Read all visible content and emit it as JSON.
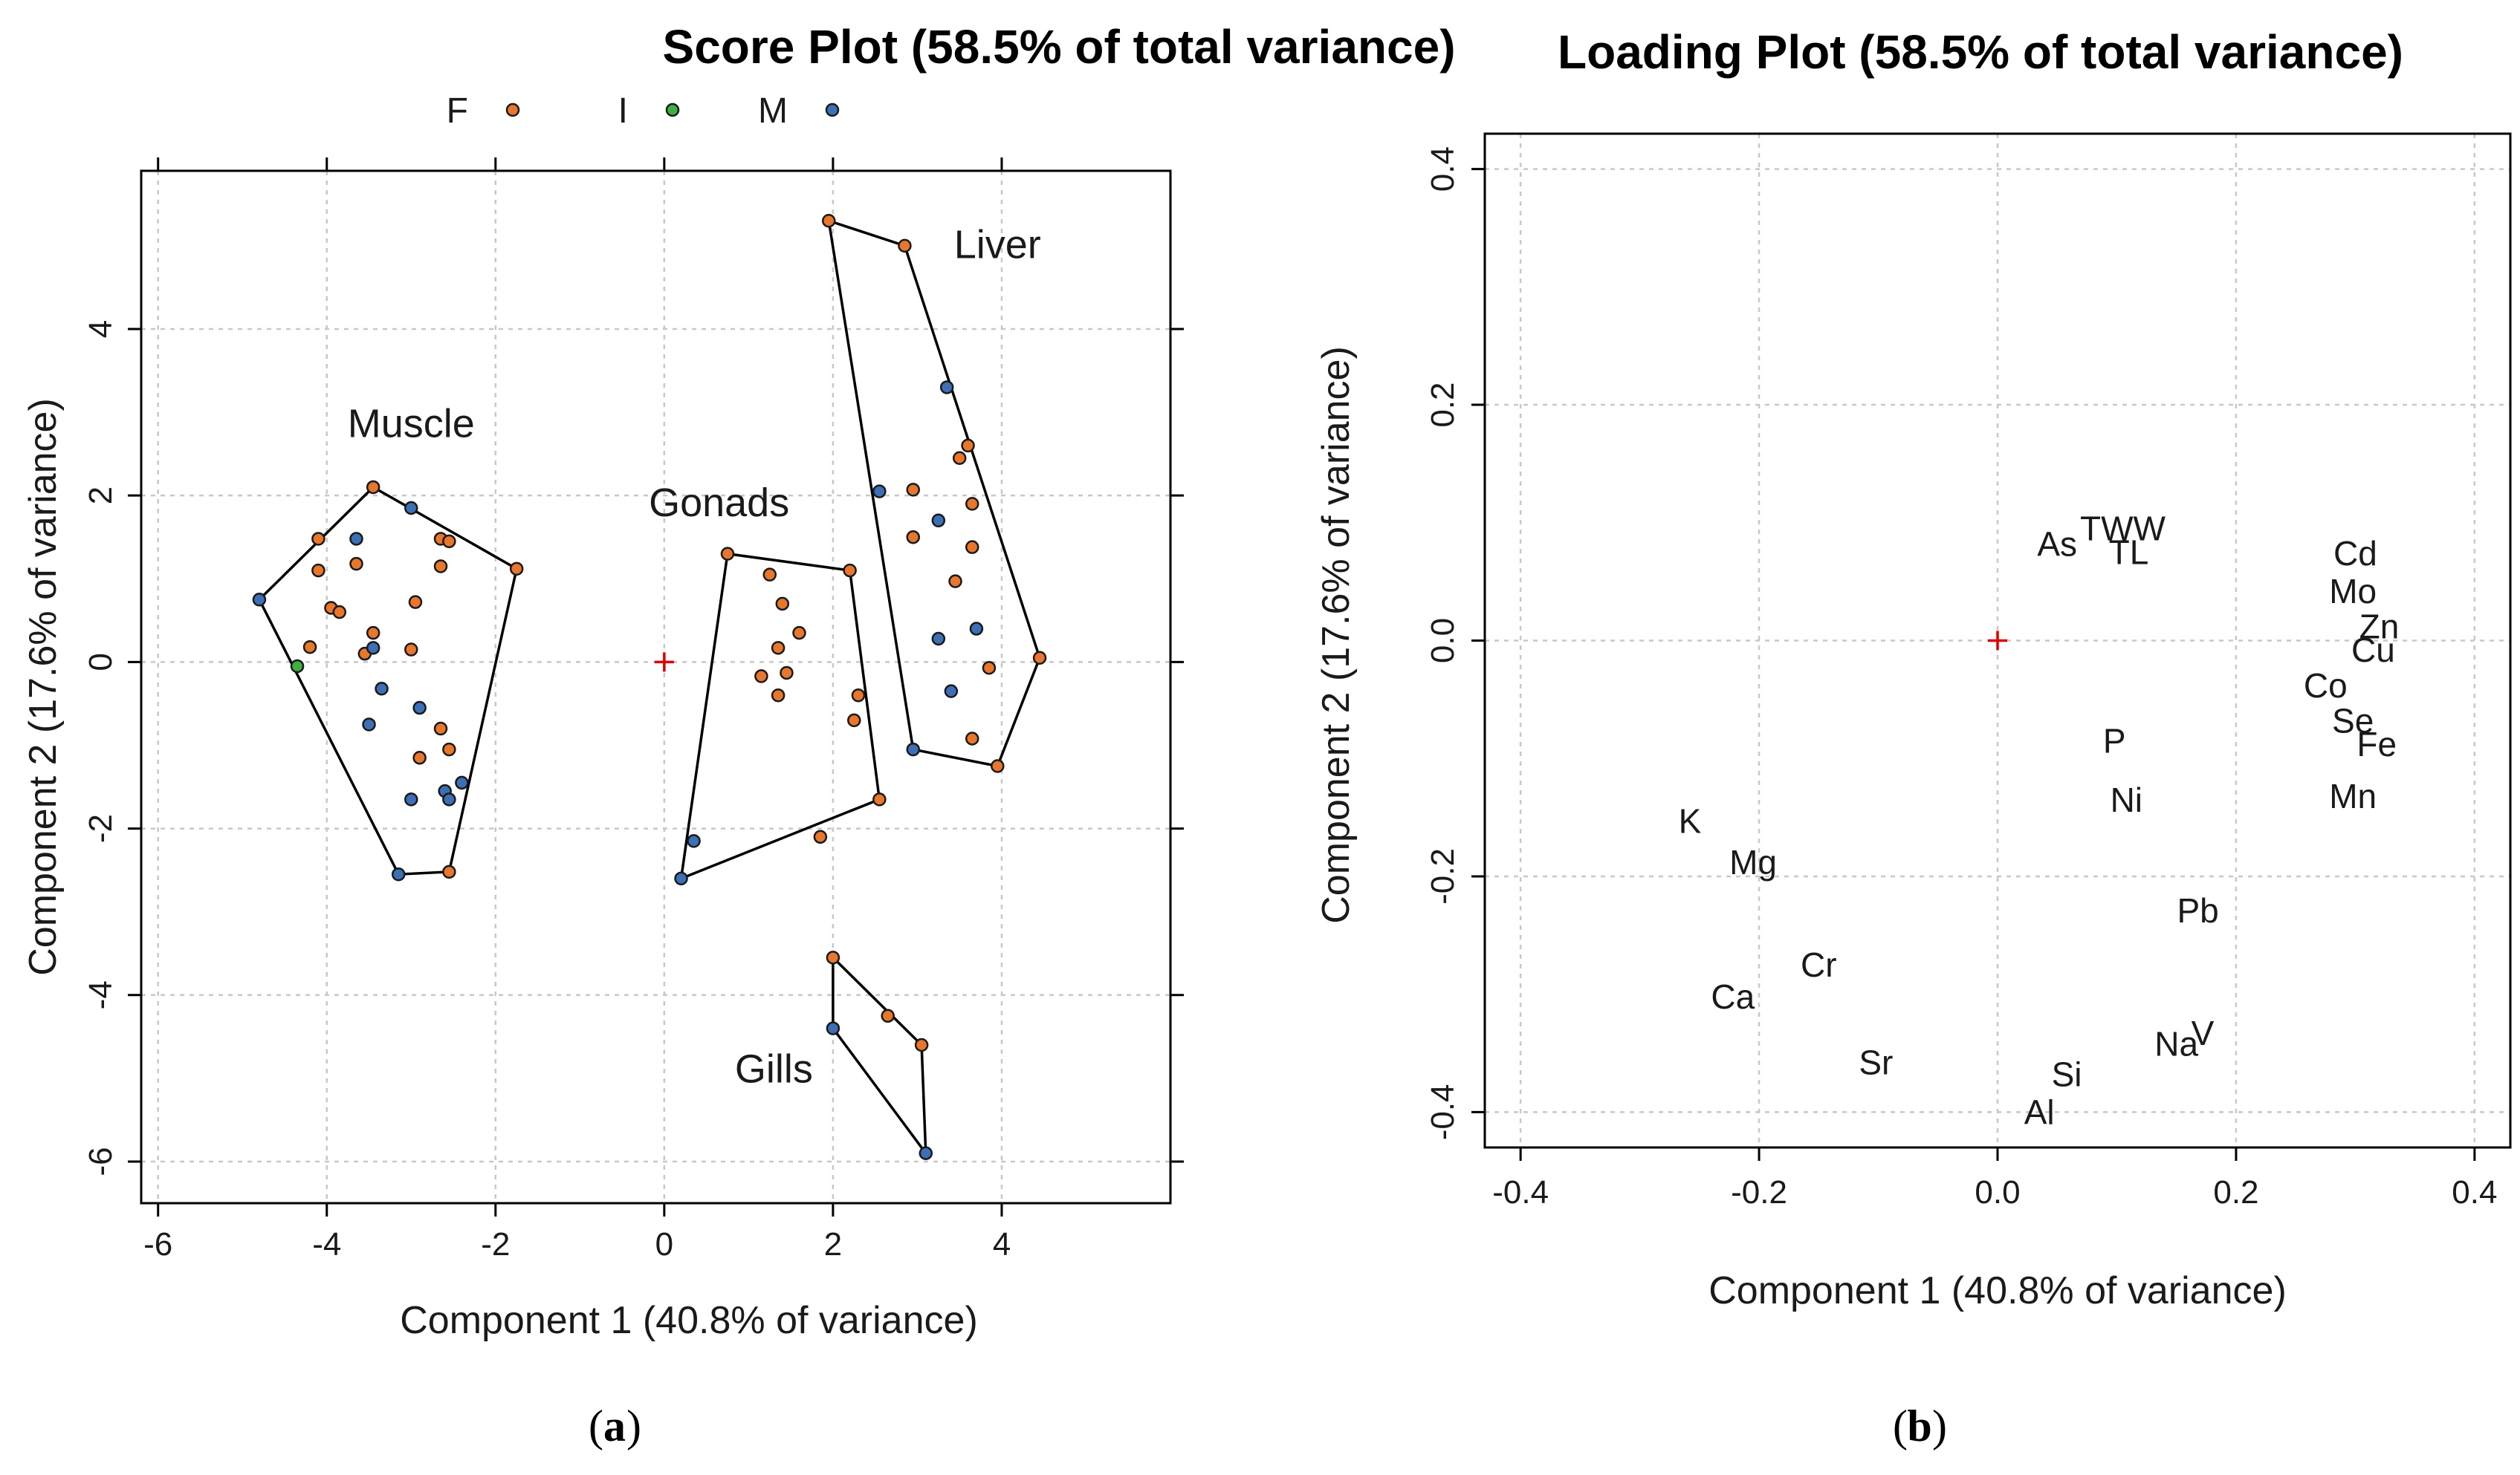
{
  "chart_data": [
    {
      "id": "a",
      "type": "scatter",
      "title": "Score Plot (58.5% of total variance)",
      "xlabel": "Component 1 (40.8% of variance)",
      "ylabel": "Component 2 (17.6% of variance)",
      "xlim": [
        -6.2,
        6.0
      ],
      "ylim": [
        -6.5,
        5.9
      ],
      "xticks": [
        -6,
        -4,
        -2,
        0,
        2,
        4
      ],
      "yticks": [
        -6,
        -4,
        -2,
        0,
        2,
        4
      ],
      "grid": true,
      "panel_label": "a",
      "colors": {
        "F": "#e8762b",
        "I": "#3cb043",
        "M": "#3b6fb6",
        "origin": "#e00000"
      },
      "legend": [
        {
          "key": "F",
          "label": "F"
        },
        {
          "key": "I",
          "label": "I"
        },
        {
          "key": "M",
          "label": "M"
        }
      ],
      "groups": [
        {
          "name": "Muscle",
          "label_at": [
            -3.0,
            2.7
          ],
          "hull": [
            [
              -4.8,
              0.75
            ],
            [
              -3.45,
              2.1
            ],
            [
              -1.75,
              1.12
            ],
            [
              -2.55,
              -2.52
            ],
            [
              -3.15,
              -2.55
            ]
          ],
          "points": [
            {
              "x": -4.8,
              "y": 0.75,
              "g": "M"
            },
            {
              "x": -4.35,
              "y": -0.05,
              "g": "I"
            },
            {
              "x": -4.2,
              "y": 0.18,
              "g": "F"
            },
            {
              "x": -4.1,
              "y": 1.48,
              "g": "F"
            },
            {
              "x": -4.1,
              "y": 1.1,
              "g": "F"
            },
            {
              "x": -3.95,
              "y": 0.65,
              "g": "F"
            },
            {
              "x": -3.85,
              "y": 0.6,
              "g": "F"
            },
            {
              "x": -3.65,
              "y": 1.48,
              "g": "M"
            },
            {
              "x": -3.65,
              "y": 1.18,
              "g": "F"
            },
            {
              "x": -3.55,
              "y": 0.1,
              "g": "F"
            },
            {
              "x": -3.45,
              "y": 0.35,
              "g": "F"
            },
            {
              "x": -3.45,
              "y": 0.17,
              "g": "M"
            },
            {
              "x": -3.45,
              "y": 2.1,
              "g": "F"
            },
            {
              "x": -3.35,
              "y": -0.32,
              "g": "M"
            },
            {
              "x": -3.5,
              "y": -0.75,
              "g": "M"
            },
            {
              "x": -3.0,
              "y": 1.85,
              "g": "M"
            },
            {
              "x": -2.95,
              "y": 0.72,
              "g": "F"
            },
            {
              "x": -3.0,
              "y": 0.15,
              "g": "F"
            },
            {
              "x": -2.9,
              "y": -0.55,
              "g": "M"
            },
            {
              "x": -2.9,
              "y": -1.15,
              "g": "F"
            },
            {
              "x": -3.0,
              "y": -1.65,
              "g": "M"
            },
            {
              "x": -2.65,
              "y": 1.48,
              "g": "F"
            },
            {
              "x": -2.55,
              "y": 1.45,
              "g": "F"
            },
            {
              "x": -2.65,
              "y": 1.15,
              "g": "F"
            },
            {
              "x": -2.65,
              "y": -0.8,
              "g": "F"
            },
            {
              "x": -2.55,
              "y": -1.05,
              "g": "F"
            },
            {
              "x": -2.6,
              "y": -1.55,
              "g": "M"
            },
            {
              "x": -2.55,
              "y": -1.65,
              "g": "M"
            },
            {
              "x": -2.4,
              "y": -1.45,
              "g": "M"
            },
            {
              "x": -2.55,
              "y": -2.52,
              "g": "F"
            },
            {
              "x": -3.15,
              "y": -2.55,
              "g": "M"
            },
            {
              "x": -1.75,
              "y": 1.12,
              "g": "F"
            }
          ]
        },
        {
          "name": "Gonads",
          "label_at": [
            0.65,
            1.75
          ],
          "hull": [
            [
              0.75,
              1.3
            ],
            [
              2.2,
              1.1
            ],
            [
              2.55,
              -1.65
            ],
            [
              0.2,
              -2.6
            ]
          ],
          "points": [
            {
              "x": 0.75,
              "y": 1.3,
              "g": "F"
            },
            {
              "x": 1.25,
              "y": 1.05,
              "g": "F"
            },
            {
              "x": 1.4,
              "y": 0.7,
              "g": "F"
            },
            {
              "x": 1.6,
              "y": 0.35,
              "g": "F"
            },
            {
              "x": 1.35,
              "y": 0.17,
              "g": "F"
            },
            {
              "x": 1.15,
              "y": -0.17,
              "g": "F"
            },
            {
              "x": 1.45,
              "y": -0.13,
              "g": "F"
            },
            {
              "x": 1.35,
              "y": -0.4,
              "g": "F"
            },
            {
              "x": 2.2,
              "y": 1.1,
              "g": "F"
            },
            {
              "x": 2.3,
              "y": -0.4,
              "g": "F"
            },
            {
              "x": 2.25,
              "y": -0.7,
              "g": "F"
            },
            {
              "x": 2.55,
              "y": -1.65,
              "g": "F"
            },
            {
              "x": 1.85,
              "y": -2.1,
              "g": "F"
            },
            {
              "x": 0.35,
              "y": -2.15,
              "g": "M"
            },
            {
              "x": 0.2,
              "y": -2.6,
              "g": "M"
            }
          ]
        },
        {
          "name": "Liver",
          "label_at": [
            3.95,
            4.85
          ],
          "hull": [
            [
              1.95,
              5.3
            ],
            [
              2.85,
              5.0
            ],
            [
              4.45,
              0.05
            ],
            [
              3.95,
              -1.25
            ],
            [
              2.95,
              -1.05
            ]
          ],
          "points": [
            {
              "x": 1.95,
              "y": 5.3,
              "g": "F"
            },
            {
              "x": 2.85,
              "y": 5.0,
              "g": "F"
            },
            {
              "x": 3.35,
              "y": 3.3,
              "g": "M"
            },
            {
              "x": 3.6,
              "y": 2.6,
              "g": "F"
            },
            {
              "x": 3.5,
              "y": 2.45,
              "g": "F"
            },
            {
              "x": 2.55,
              "y": 2.05,
              "g": "M"
            },
            {
              "x": 2.95,
              "y": 2.07,
              "g": "F"
            },
            {
              "x": 3.65,
              "y": 1.9,
              "g": "F"
            },
            {
              "x": 3.25,
              "y": 1.7,
              "g": "M"
            },
            {
              "x": 2.95,
              "y": 1.5,
              "g": "F"
            },
            {
              "x": 3.65,
              "y": 1.38,
              "g": "F"
            },
            {
              "x": 3.45,
              "y": 0.97,
              "g": "F"
            },
            {
              "x": 3.7,
              "y": 0.4,
              "g": "M"
            },
            {
              "x": 3.25,
              "y": 0.28,
              "g": "M"
            },
            {
              "x": 3.85,
              "y": -0.07,
              "g": "F"
            },
            {
              "x": 3.4,
              "y": -0.35,
              "g": "M"
            },
            {
              "x": 3.65,
              "y": -0.92,
              "g": "F"
            },
            {
              "x": 2.95,
              "y": -1.05,
              "g": "M"
            },
            {
              "x": 3.95,
              "y": -1.25,
              "g": "F"
            },
            {
              "x": 4.45,
              "y": 0.05,
              "g": "F"
            }
          ]
        },
        {
          "name": "Gills",
          "label_at": [
            1.3,
            -5.05
          ],
          "hull": [
            [
              2.0,
              -3.55
            ],
            [
              3.05,
              -4.6
            ],
            [
              3.1,
              -5.9
            ],
            [
              2.0,
              -4.4
            ]
          ],
          "points": [
            {
              "x": 2.0,
              "y": -3.55,
              "g": "F"
            },
            {
              "x": 2.65,
              "y": -4.25,
              "g": "F"
            },
            {
              "x": 3.05,
              "y": -4.6,
              "g": "F"
            },
            {
              "x": 2.0,
              "y": -4.4,
              "g": "M"
            },
            {
              "x": 3.1,
              "y": -5.9,
              "g": "M"
            }
          ]
        }
      ],
      "origin_marker": [
        0,
        0
      ]
    },
    {
      "id": "b",
      "type": "scatter",
      "title": "Loading Plot (58.5% of total variance)",
      "xlabel": "Component 1 (40.8% of variance)",
      "ylabel": "Component 2 (17.6% of variance)",
      "xlim": [
        -0.43,
        0.43
      ],
      "ylim": [
        -0.43,
        0.43
      ],
      "xticks": [
        -0.4,
        -0.2,
        0.0,
        0.2,
        0.4
      ],
      "yticks": [
        -0.4,
        -0.2,
        0.0,
        0.2,
        0.4
      ],
      "xtick_labels": [
        "-0.4",
        "-0.2",
        "0.0",
        "0.2",
        "0.4"
      ],
      "ytick_labels": [
        "-0.4",
        "-0.2",
        "0.0",
        "0.2",
        "0.4"
      ],
      "grid": true,
      "panel_label": "b",
      "origin_marker": [
        0,
        0
      ],
      "variables": [
        {
          "label": "TWW",
          "x": 0.105,
          "y": 0.095
        },
        {
          "label": "As",
          "x": 0.05,
          "y": 0.082
        },
        {
          "label": "TL",
          "x": 0.11,
          "y": 0.075
        },
        {
          "label": "Cd",
          "x": 0.3,
          "y": 0.074
        },
        {
          "label": "Mo",
          "x": 0.298,
          "y": 0.042
        },
        {
          "label": "Zn",
          "x": 0.32,
          "y": 0.012
        },
        {
          "label": "Cu",
          "x": 0.315,
          "y": -0.008
        },
        {
          "label": "Co",
          "x": 0.275,
          "y": -0.038
        },
        {
          "label": "Se",
          "x": 0.298,
          "y": -0.068
        },
        {
          "label": "Fe",
          "x": 0.318,
          "y": -0.088
        },
        {
          "label": "P",
          "x": 0.098,
          "y": -0.085
        },
        {
          "label": "Mn",
          "x": 0.298,
          "y": -0.132
        },
        {
          "label": "Ni",
          "x": 0.108,
          "y": -0.135
        },
        {
          "label": "K",
          "x": -0.258,
          "y": -0.153
        },
        {
          "label": "Mg",
          "x": -0.205,
          "y": -0.188
        },
        {
          "label": "Pb",
          "x": 0.168,
          "y": -0.229
        },
        {
          "label": "Cr",
          "x": -0.15,
          "y": -0.275
        },
        {
          "label": "Ca",
          "x": -0.222,
          "y": -0.302
        },
        {
          "label": "V",
          "x": 0.172,
          "y": -0.333
        },
        {
          "label": "Na",
          "x": 0.15,
          "y": -0.342
        },
        {
          "label": "Sr",
          "x": -0.102,
          "y": -0.358
        },
        {
          "label": "Si",
          "x": 0.058,
          "y": -0.368
        },
        {
          "label": "Al",
          "x": 0.035,
          "y": -0.4
        }
      ]
    }
  ]
}
